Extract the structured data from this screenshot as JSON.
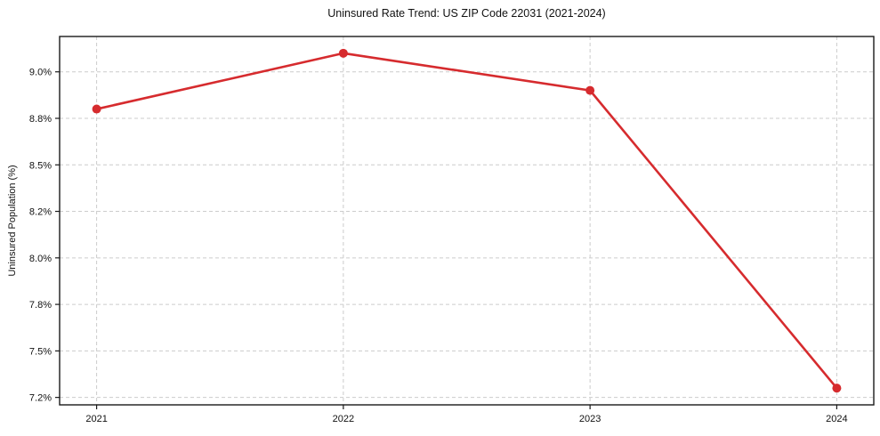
{
  "chart_data": {
    "type": "line",
    "title": "Uninsured Rate Trend: US ZIP Code 22031 (2021-2024)",
    "ylabel": "Uninsured Population (%)",
    "xlabel": "",
    "x": [
      2021,
      2022,
      2023,
      2024
    ],
    "series": [
      {
        "name": "Uninsured Rate",
        "color": "#d62b2e",
        "values": [
          8.8,
          9.1,
          8.9,
          7.3
        ]
      }
    ],
    "xlim": [
      2020.85,
      2024.15
    ],
    "ylim": [
      7.21,
      9.19
    ],
    "yticks": [
      9.0,
      8.75,
      8.5,
      8.25,
      8.0,
      7.75,
      7.5,
      7.25
    ],
    "ytick_labels": [
      "9.0%",
      "8.8%",
      "8.5%",
      "8.2%",
      "8.0%",
      "7.8%",
      "7.5%",
      "7.2%"
    ],
    "xticks": [
      2021,
      2022,
      2023,
      2024
    ],
    "xtick_labels": [
      "2021",
      "2022",
      "2023",
      "2024"
    ],
    "grid": true,
    "grid_style": "dashed",
    "legend": "none",
    "marker": "circle",
    "colors": {
      "line": "#d62b2e",
      "grid": "#cccccc",
      "axis": "#1a1a1a",
      "text": "#111111",
      "background": "#ffffff"
    }
  }
}
